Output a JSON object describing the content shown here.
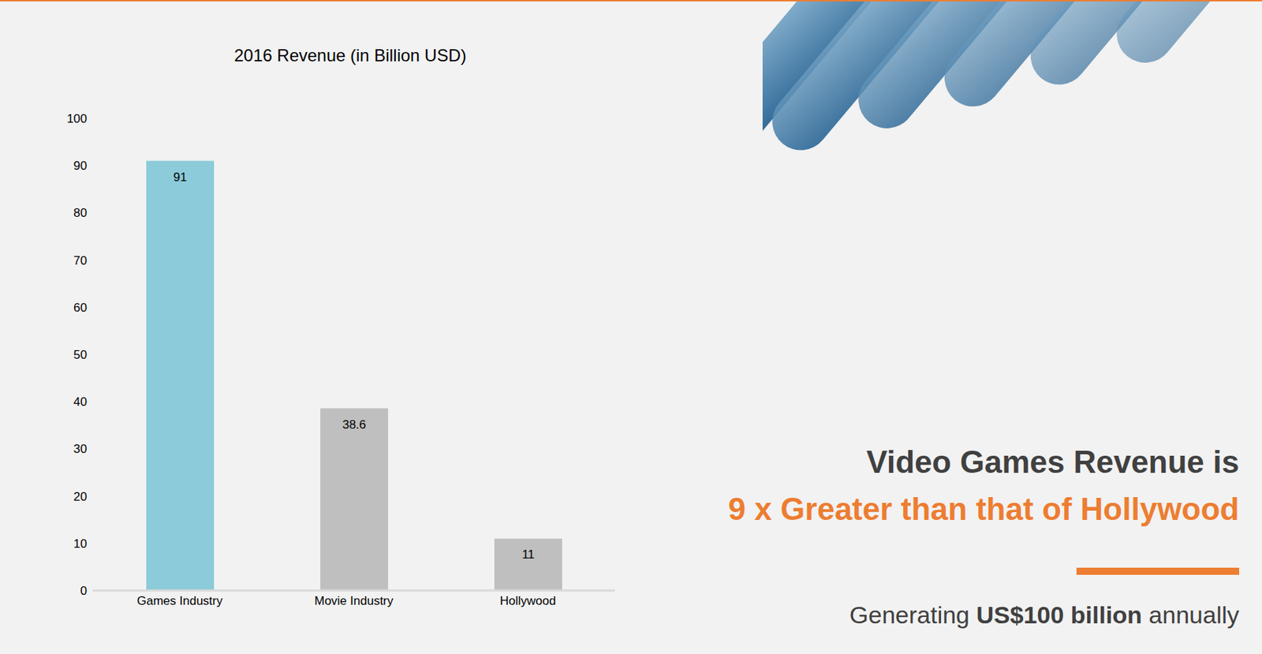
{
  "chart_data": {
    "type": "bar",
    "title": "2016 Revenue (in Billion USD)",
    "categories": [
      "Games Industry",
      "Movie Industry",
      "Hollywood"
    ],
    "values": [
      91,
      38.6,
      11
    ],
    "colors": [
      "#8ccbd9",
      "#bfbfbf",
      "#bfbfbf"
    ],
    "ylim": [
      0,
      100
    ],
    "yticks": [
      0,
      10,
      20,
      30,
      40,
      50,
      60,
      70,
      80,
      90,
      100
    ],
    "grid": false,
    "data_labels": true,
    "annotations": [
      "Video Games Revenue is",
      "9 x Greater than that of Hollywood",
      [
        "Generating",
        "US$100 billion",
        "annually"
      ]
    ]
  }
}
